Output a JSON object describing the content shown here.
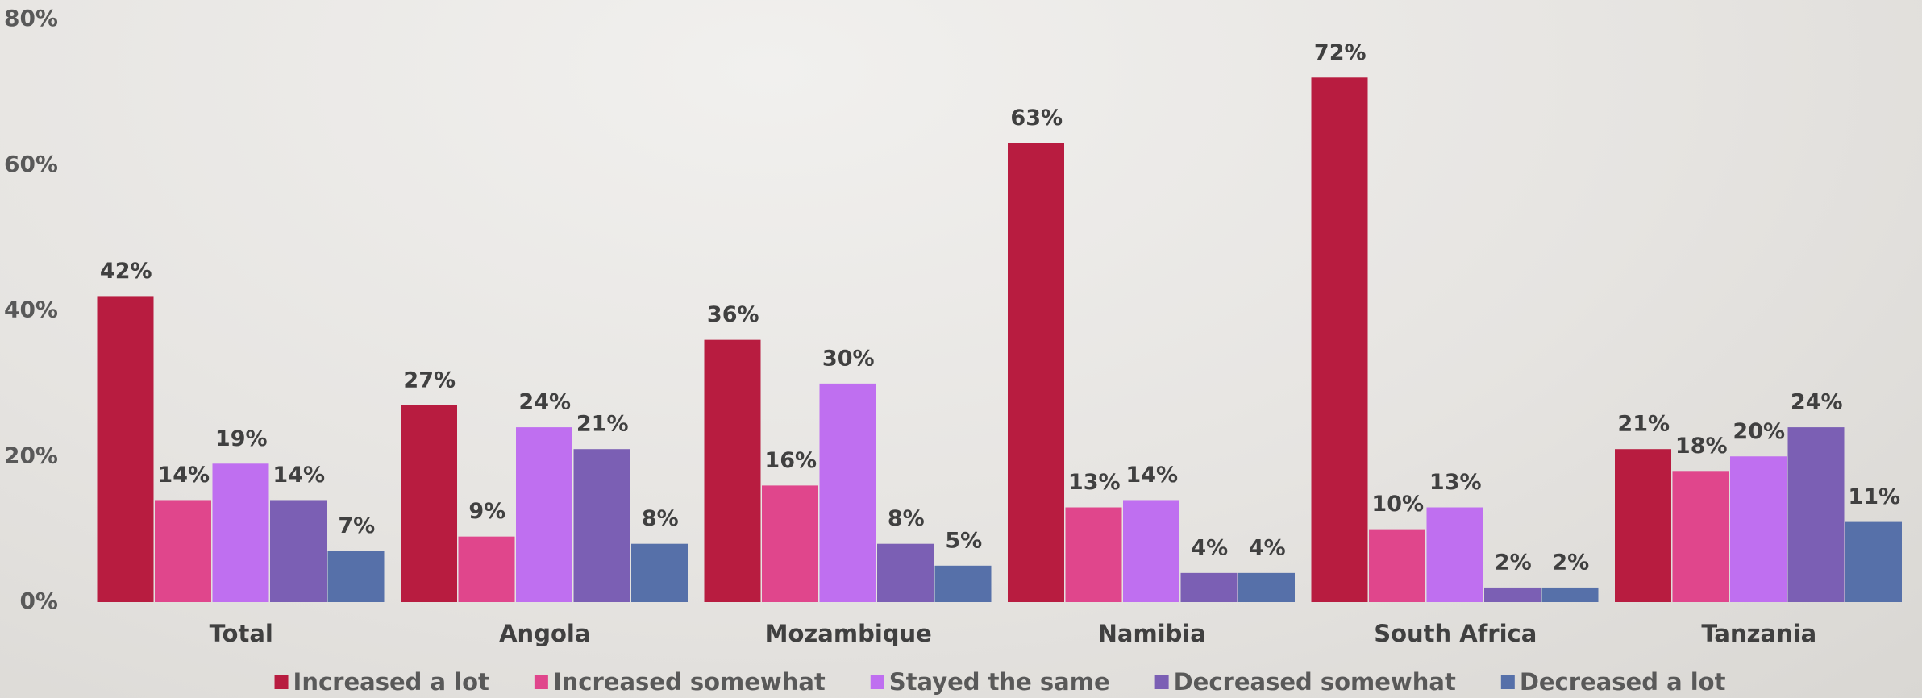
{
  "chart_data": {
    "type": "bar",
    "categories": [
      "Total",
      "Angola",
      "Mozambique",
      "Namibia",
      "South Africa",
      "Tanzania"
    ],
    "series": [
      {
        "name": "Increased a lot",
        "color": "#b81c40",
        "values": [
          42,
          27,
          36,
          63,
          72,
          21
        ],
        "value_labels": [
          "42%",
          "27%",
          "36%",
          "63%",
          "72%",
          "21%"
        ]
      },
      {
        "name": "Increased somewhat",
        "color": "#e0468c",
        "values": [
          14,
          9,
          16,
          13,
          10,
          18
        ],
        "value_labels": [
          "14%",
          "9%",
          "16%",
          "13%",
          "10%",
          "18%"
        ]
      },
      {
        "name": "Stayed the same",
        "color": "#bf6ff0",
        "values": [
          19,
          24,
          30,
          14,
          13,
          20
        ],
        "value_labels": [
          "19%",
          "24%",
          "30%",
          "14%",
          "13%",
          "20%"
        ]
      },
      {
        "name": "Decreased somewhat",
        "color": "#7b5fb4",
        "values": [
          14,
          21,
          8,
          4,
          2,
          24
        ],
        "value_labels": [
          "14%",
          "21%",
          "8%",
          "4%",
          "2%",
          "24%"
        ]
      },
      {
        "name": "Decreased a lot",
        "color": "#5670a9",
        "values": [
          7,
          8,
          5,
          4,
          2,
          11
        ],
        "value_labels": [
          "7%",
          "8%",
          "5%",
          "4%",
          "2%",
          "11%"
        ]
      }
    ],
    "ylim": [
      0,
      80
    ],
    "yticks": [
      {
        "value": 0,
        "label": "0%"
      },
      {
        "value": 20,
        "label": "20%"
      },
      {
        "value": 40,
        "label": "40%"
      },
      {
        "value": 60,
        "label": "60%"
      },
      {
        "value": 80,
        "label": "80%"
      }
    ],
    "legend": "bottom"
  }
}
